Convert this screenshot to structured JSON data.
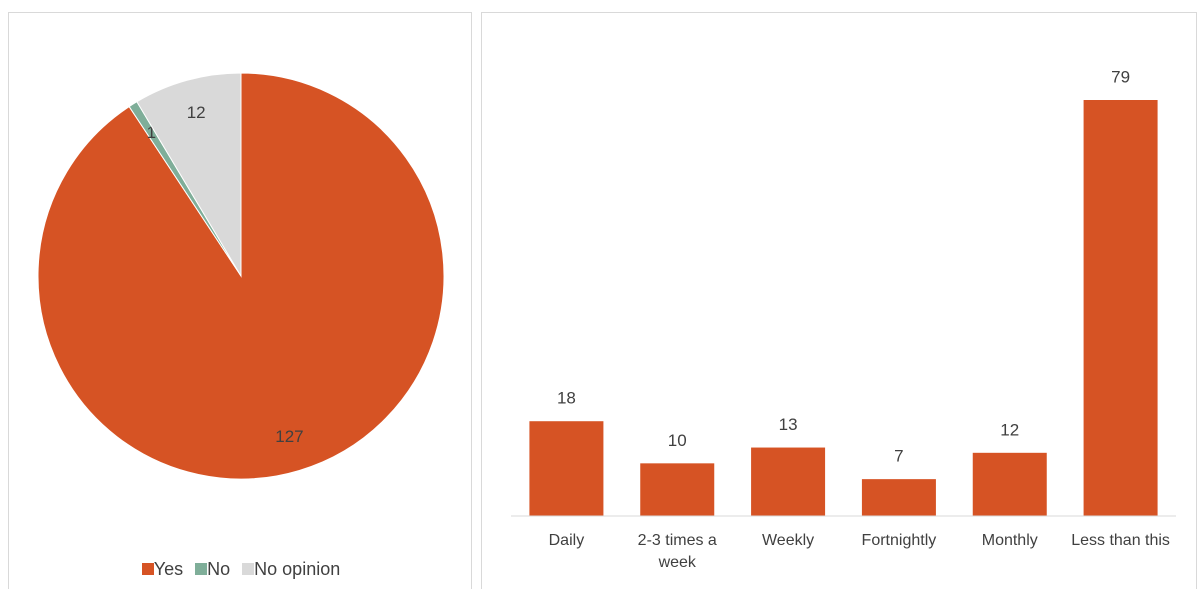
{
  "chart_data": [
    {
      "type": "pie",
      "categories": [
        "Yes",
        "No",
        "No opinion"
      ],
      "values": [
        127,
        1,
        12
      ],
      "colors": [
        "#d65324",
        "#7fae99",
        "#d9d9d9"
      ],
      "legend": "bottom"
    },
    {
      "type": "bar",
      "categories": [
        "Daily",
        "2-3 times a week",
        "Weekly",
        "Fortnightly",
        "Monthly",
        "Less than this"
      ],
      "values": [
        18,
        10,
        13,
        7,
        12,
        79
      ],
      "color": "#d65324"
    }
  ]
}
